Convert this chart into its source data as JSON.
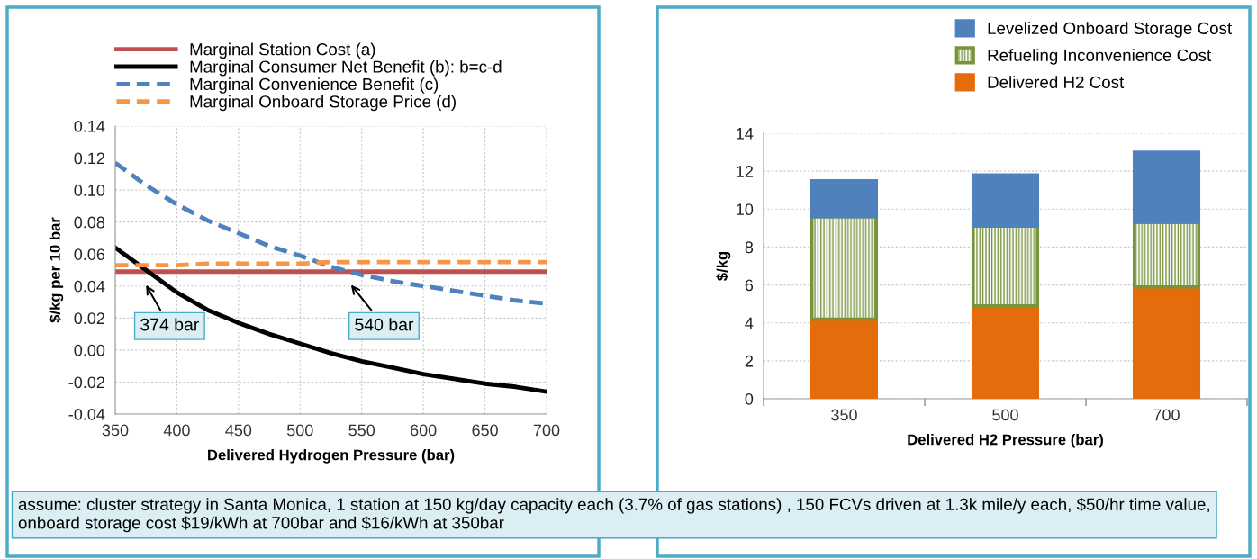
{
  "chart_data": [
    {
      "type": "line",
      "xlabel": "Delivered Hydrogen Pressure (bar)",
      "ylabel": "$/kg per 10 bar",
      "x": [
        350,
        375,
        400,
        425,
        450,
        475,
        500,
        525,
        550,
        575,
        600,
        625,
        650,
        675,
        700
      ],
      "series": [
        {
          "name": "Marginal Station Cost (a)",
          "color": "#c0504d",
          "line_style": "solid",
          "values": [
            0.049,
            0.049,
            0.049,
            0.049,
            0.049,
            0.049,
            0.049,
            0.049,
            0.049,
            0.049,
            0.049,
            0.049,
            0.049,
            0.049,
            0.049
          ]
        },
        {
          "name": "Marginal Consumer Net Benefit (b): b=c-d",
          "color": "#000000",
          "line_style": "solid",
          "values": [
            0.064,
            0.05,
            0.036,
            0.025,
            0.017,
            0.01,
            0.004,
            -0.002,
            -0.007,
            -0.011,
            -0.015,
            -0.018,
            -0.021,
            -0.023,
            -0.026
          ]
        },
        {
          "name": "Marginal Convenience Benefit (c)",
          "color": "#4f81bd",
          "line_style": "dashed",
          "values": [
            0.117,
            0.103,
            0.091,
            0.081,
            0.073,
            0.065,
            0.059,
            0.052,
            0.047,
            0.043,
            0.04,
            0.037,
            0.034,
            0.031,
            0.029
          ]
        },
        {
          "name": "Marginal Onboard Storage Price (d)",
          "color": "#f79646",
          "line_style": "dashed",
          "values": [
            0.053,
            0.053,
            0.053,
            0.054,
            0.054,
            0.054,
            0.054,
            0.055,
            0.055,
            0.055,
            0.055,
            0.055,
            0.055,
            0.055,
            0.055
          ]
        }
      ],
      "xlim": [
        350,
        700
      ],
      "xticks": [
        350,
        400,
        450,
        500,
        550,
        600,
        650,
        700
      ],
      "ylim": [
        -0.04,
        0.14
      ],
      "yticks": [
        {
          "value": -0.04,
          "label": "-0.04"
        },
        {
          "value": -0.02,
          "label": "-0.02"
        },
        {
          "value": 0,
          "label": "0.00"
        },
        {
          "value": 0.02,
          "label": "0.02"
        },
        {
          "value": 0.04,
          "label": "0.04"
        },
        {
          "value": 0.06,
          "label": "0.06"
        },
        {
          "value": 0.08,
          "label": "0.08"
        },
        {
          "value": 0.1,
          "label": "0.10"
        },
        {
          "value": 0.12,
          "label": "0.12"
        },
        {
          "value": 0.14,
          "label": "0.14"
        }
      ],
      "grid": true,
      "legend": "top",
      "marker": "none",
      "annotations": [
        {
          "text": "374 bar",
          "x": 374,
          "y": 0.049
        },
        {
          "text": "540 bar",
          "x": 540,
          "y": 0.049
        },
        "assume: cluster strategy in Santa Monica, 1 station at 150 kg/day capacity each (3.7% of gas stations) , 150 FCVs driven at 1.3k mile/y each, $50/hr time value, onboard storage cost $19/kWh at 700bar and $16/kWh at 350bar"
      ]
    },
    {
      "type": "bar",
      "stacked": true,
      "xlabel": "Delivered H2 Pressure (bar)",
      "ylabel": "$/kg",
      "categories": [
        "350",
        "500",
        "700"
      ],
      "series": [
        {
          "name": "Delivered H2 Cost",
          "color": "#e46c0a",
          "values": [
            4.2,
            4.9,
            5.9
          ]
        },
        {
          "name": "Refueling Inconvenience Cost",
          "color": "#77933c",
          "values": [
            5.4,
            4.2,
            3.4
          ]
        },
        {
          "name": "Levelized Onboard Storage Cost",
          "color": "#4f81bd",
          "values": [
            1.9,
            2.7,
            3.7
          ]
        }
      ],
      "ylim": [
        0,
        14
      ],
      "yticks": [
        0,
        2,
        4,
        6,
        8,
        10,
        12,
        14
      ],
      "grid": "y",
      "legend": "top right"
    }
  ]
}
